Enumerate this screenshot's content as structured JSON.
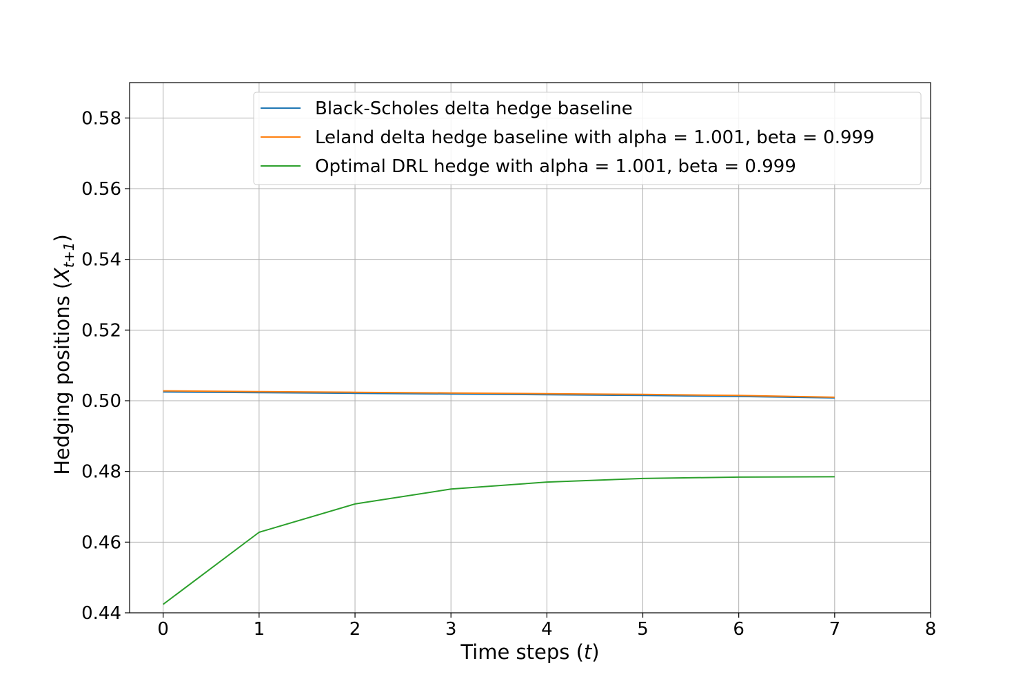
{
  "chart_data": {
    "type": "line",
    "title": "",
    "xlabel": "Time steps (t)",
    "ylabel": "Hedging positions (X_{t+1})",
    "xlim": [
      -0.35,
      8
    ],
    "ylim": [
      0.44,
      0.59
    ],
    "xticks": [
      0,
      1,
      2,
      3,
      4,
      5,
      6,
      7,
      8
    ],
    "yticks": [
      0.44,
      0.46,
      0.48,
      0.5,
      0.52,
      0.54,
      0.56,
      0.58
    ],
    "xtick_labels": [
      "0",
      "1",
      "2",
      "3",
      "4",
      "5",
      "6",
      "7",
      "8"
    ],
    "ytick_labels": [
      "0.44",
      "0.46",
      "0.48",
      "0.50",
      "0.52",
      "0.54",
      "0.56",
      "0.58"
    ],
    "grid": true,
    "legend_position": "top-center",
    "x": [
      0,
      1,
      2,
      3,
      4,
      5,
      6,
      7
    ],
    "series": [
      {
        "name": "Black-Scholes delta hedge baseline",
        "color": "#1f77b4",
        "values": [
          0.5025,
          0.5023,
          0.5021,
          0.5019,
          0.5017,
          0.5015,
          0.5012,
          0.5008
        ]
      },
      {
        "name": "Leland delta hedge baseline with alpha = 1.001, beta = 0.999",
        "color": "#ff7f0e",
        "values": [
          0.5028,
          0.5026,
          0.5024,
          0.5022,
          0.502,
          0.5018,
          0.5015,
          0.501
        ]
      },
      {
        "name": "Optimal DRL hedge with alpha = 1.001, beta = 0.999",
        "color": "#2ca02c",
        "values": [
          0.4424,
          0.4628,
          0.4708,
          0.475,
          0.477,
          0.478,
          0.4784,
          0.4785
        ]
      }
    ]
  }
}
